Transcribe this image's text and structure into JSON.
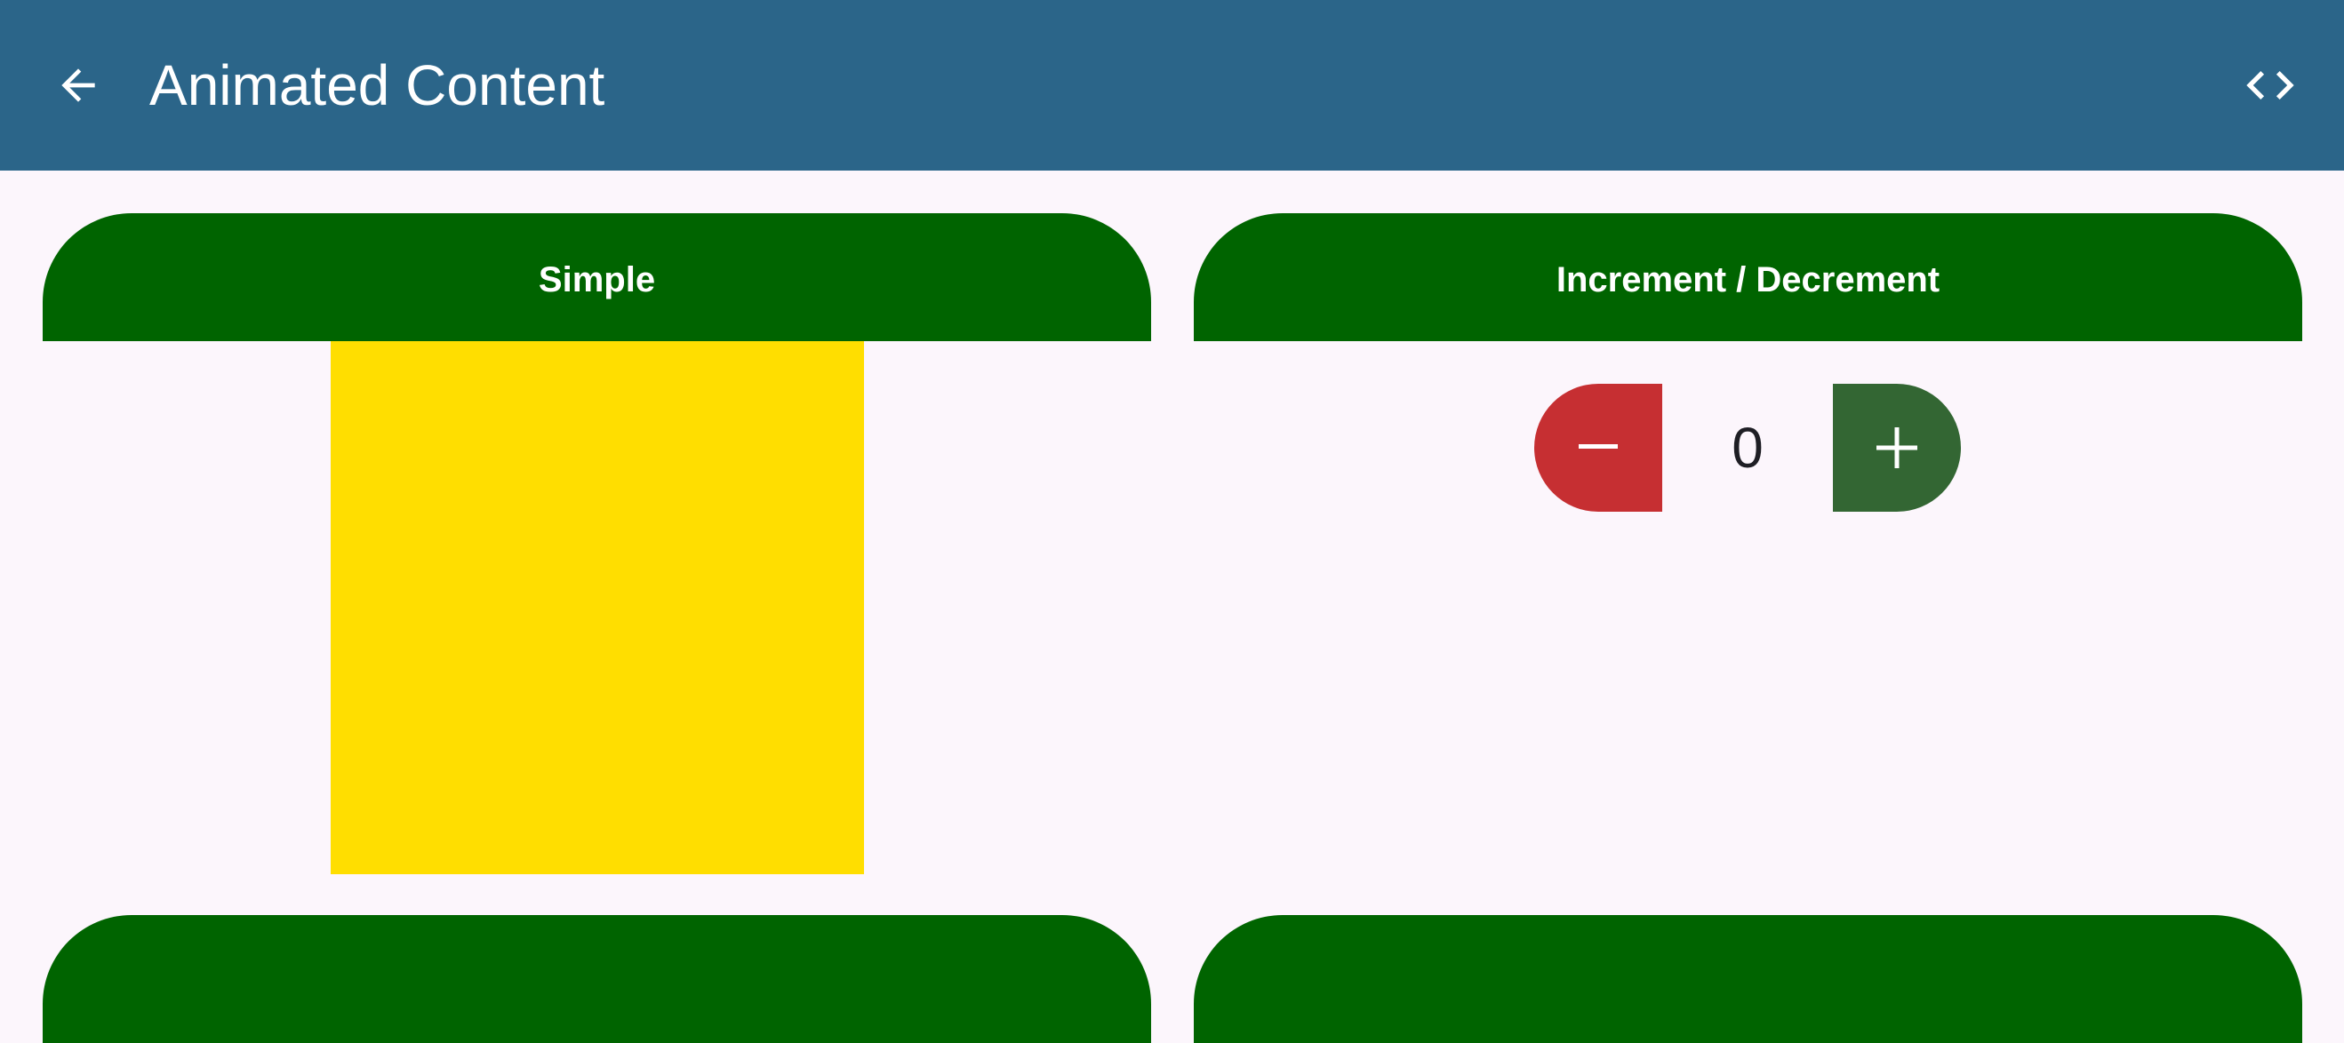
{
  "app_bar": {
    "title": "Animated Content",
    "back_icon": "arrow-back-icon",
    "code_icon": "code-icon",
    "background": "#2b6589"
  },
  "cards": [
    {
      "title": "Simple",
      "header_color": "#006400"
    },
    {
      "title": "Increment / Decrement",
      "header_color": "#006400"
    }
  ],
  "simple": {
    "box_color": "#ffde00"
  },
  "counter": {
    "value": "0",
    "decrement_icon": "minus-icon",
    "increment_icon": "plus-icon",
    "decrement_color": "#c62f32",
    "increment_color": "#336633"
  }
}
